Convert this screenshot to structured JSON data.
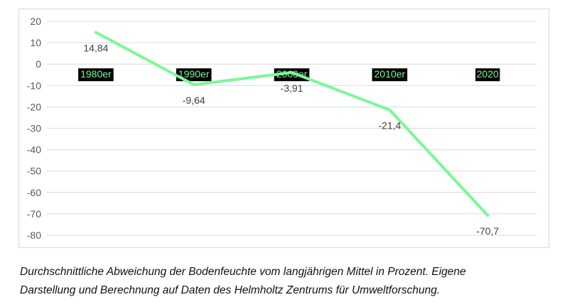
{
  "caption": {
    "line1": "Durchschnittliche Abweichung der Bodenfeuchte vom langjährigen Mittel in Prozent. Eigene",
    "line2": "Darstellung und Berechnung auf Daten des Helmholtz Zentrums für Umweltforschung."
  },
  "chart_data": {
    "type": "line",
    "title": "",
    "xlabel": "",
    "ylabel": "",
    "categories": [
      "1980er",
      "1990er",
      "2000er",
      "2010er",
      "2020"
    ],
    "series": [
      {
        "values": [
          14.84,
          -9.64,
          -3.91,
          -21.4,
          -70.7
        ],
        "data_labels": [
          "14,84",
          "-9,64",
          "-3,91",
          "-21,4",
          "-70,7"
        ],
        "color": "#7cf797"
      }
    ],
    "ylim": [
      -80,
      20
    ],
    "yticks": [
      20,
      10,
      0,
      -10,
      -20,
      -30,
      -40,
      -50,
      -60,
      -70,
      -80
    ],
    "grid": true,
    "legend": "none",
    "category_label_style": {
      "background": "#000000",
      "color": "#7cf797"
    },
    "colors": {
      "gridline": "#d9d9d9",
      "tick_text": "#595959",
      "label_text": "#404040"
    }
  }
}
